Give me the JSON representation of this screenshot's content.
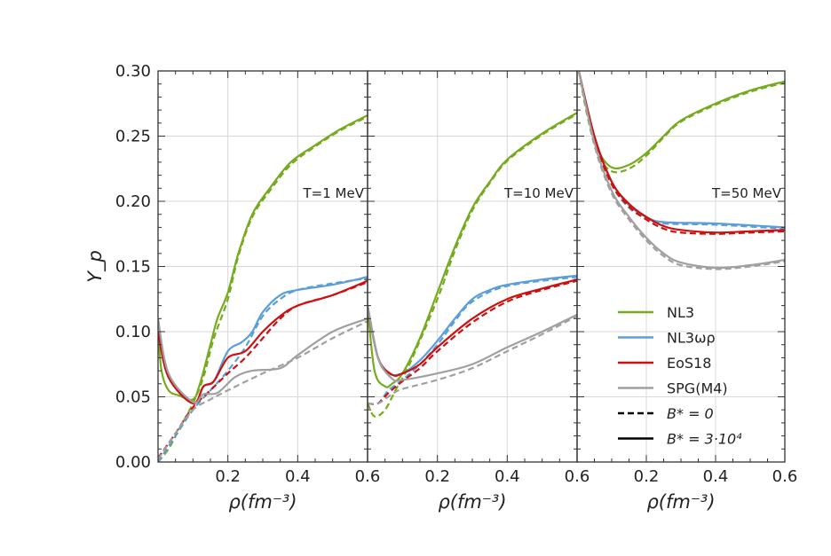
{
  "chart_data": {
    "type": "line",
    "ylabel": "Y_p",
    "ylim": [
      0,
      0.3
    ],
    "yticks": [
      "0.00",
      "0.05",
      "0.10",
      "0.15",
      "0.20",
      "0.25",
      "0.30"
    ],
    "xlim": [
      0,
      0.6
    ],
    "grid": true,
    "legend_placement": "bottom-right of third panel",
    "colors": {
      "NL3": "#77ab1f",
      "NL3wr": "#5b9ed8",
      "EoS18": "#cc1111",
      "SPG": "#a0a0a0"
    },
    "legend": [
      {
        "key": "NL3",
        "label": "NL3",
        "style": "solid"
      },
      {
        "key": "NL3wr",
        "label": "NL3ωρ",
        "style": "solid"
      },
      {
        "key": "EoS18",
        "label": "EoS18",
        "style": "solid"
      },
      {
        "key": "SPG",
        "label": "SPG(M4)",
        "style": "solid"
      },
      {
        "key": "black",
        "label": "B* = 0",
        "style": "dashed"
      },
      {
        "key": "black",
        "label": "B* = 3·10⁴",
        "style": "solid"
      }
    ],
    "panels": [
      {
        "annotation": "T=1 MeV",
        "xlabel": "ρ(fm⁻³)",
        "xticks": [
          "0.2",
          "0.4",
          "0.6"
        ],
        "series": [
          {
            "key": "NL3",
            "style": "solid",
            "x": [
              0,
              0.01,
              0.03,
              0.06,
              0.1,
              0.12,
              0.15,
              0.17,
              0.2,
              0.23,
              0.27,
              0.32,
              0.38,
              0.45,
              0.52,
              0.6
            ],
            "y": [
              0.1,
              0.07,
              0.055,
              0.051,
              0.048,
              0.06,
              0.09,
              0.11,
              0.13,
              0.16,
              0.19,
              0.21,
              0.23,
              0.243,
              0.255,
              0.266
            ]
          },
          {
            "key": "NL3",
            "style": "dashed",
            "x": [
              0,
              0.03,
              0.06,
              0.1,
              0.13,
              0.16,
              0.2,
              0.23,
              0.27,
              0.32,
              0.38,
              0.45,
              0.52,
              0.6
            ],
            "y": [
              0.0,
              0.01,
              0.025,
              0.045,
              0.065,
              0.095,
              0.125,
              0.158,
              0.188,
              0.208,
              0.228,
              0.242,
              0.254,
              0.265
            ]
          },
          {
            "key": "NL3wr",
            "style": "solid",
            "x": [
              0,
              0.03,
              0.1,
              0.13,
              0.16,
              0.2,
              0.24,
              0.27,
              0.3,
              0.35,
              0.4,
              0.5,
              0.6
            ],
            "y": [
              0.1,
              0.065,
              0.045,
              0.058,
              0.062,
              0.085,
              0.092,
              0.1,
              0.115,
              0.128,
              0.132,
              0.136,
              0.142
            ]
          },
          {
            "key": "NL3wr",
            "style": "dashed",
            "x": [
              0,
              0.05,
              0.1,
              0.15,
              0.2,
              0.25,
              0.3,
              0.35,
              0.4,
              0.5,
              0.6
            ],
            "y": [
              0.0,
              0.02,
              0.04,
              0.055,
              0.07,
              0.088,
              0.112,
              0.125,
              0.132,
              0.137,
              0.141
            ]
          },
          {
            "key": "EoS18",
            "style": "solid",
            "x": [
              0,
              0.03,
              0.1,
              0.13,
              0.16,
              0.2,
              0.25,
              0.3,
              0.35,
              0.4,
              0.5,
              0.6
            ],
            "y": [
              0.1,
              0.065,
              0.045,
              0.058,
              0.062,
              0.08,
              0.085,
              0.1,
              0.112,
              0.12,
              0.128,
              0.139
            ]
          },
          {
            "key": "EoS18",
            "style": "dashed",
            "x": [
              0,
              0.05,
              0.1,
              0.15,
              0.2,
              0.25,
              0.3,
              0.35,
              0.4,
              0.5,
              0.6
            ],
            "y": [
              0.003,
              0.022,
              0.042,
              0.055,
              0.068,
              0.08,
              0.095,
              0.11,
              0.12,
              0.128,
              0.138
            ]
          },
          {
            "key": "SPG",
            "style": "solid",
            "x": [
              0,
              0.03,
              0.1,
              0.13,
              0.17,
              0.22,
              0.27,
              0.35,
              0.4,
              0.5,
              0.6
            ],
            "y": [
              0.11,
              0.068,
              0.046,
              0.052,
              0.053,
              0.065,
              0.07,
              0.072,
              0.082,
              0.1,
              0.11
            ]
          },
          {
            "key": "SPG",
            "style": "dashed",
            "x": [
              0,
              0.05,
              0.1,
              0.15,
              0.2,
              0.3,
              0.4,
              0.5,
              0.6
            ],
            "y": [
              0.002,
              0.022,
              0.04,
              0.048,
              0.055,
              0.068,
              0.08,
              0.095,
              0.108
            ]
          }
        ]
      },
      {
        "annotation": "T=10 MeV",
        "xlabel": "ρ(fm⁻³)",
        "xticks": [
          "0.2",
          "0.4",
          "0.6"
        ],
        "series": [
          {
            "key": "NL3",
            "style": "solid",
            "x": [
              0,
              0.02,
              0.05,
              0.07,
              0.1,
              0.15,
              0.2,
              0.25,
              0.3,
              0.35,
              0.4,
              0.5,
              0.6
            ],
            "y": [
              0.12,
              0.07,
              0.058,
              0.06,
              0.068,
              0.095,
              0.13,
              0.165,
              0.195,
              0.215,
              0.232,
              0.252,
              0.268
            ]
          },
          {
            "key": "NL3",
            "style": "dashed",
            "x": [
              0,
              0.02,
              0.05,
              0.08,
              0.12,
              0.2,
              0.25,
              0.3,
              0.35,
              0.4,
              0.5,
              0.6
            ],
            "y": [
              0.045,
              0.035,
              0.04,
              0.055,
              0.075,
              0.125,
              0.162,
              0.193,
              0.214,
              0.231,
              0.251,
              0.267
            ]
          },
          {
            "key": "NL3wr",
            "style": "solid",
            "x": [
              0,
              0.03,
              0.06,
              0.1,
              0.15,
              0.2,
              0.25,
              0.3,
              0.35,
              0.4,
              0.5,
              0.6
            ],
            "y": [
              0.12,
              0.08,
              0.068,
              0.068,
              0.078,
              0.093,
              0.11,
              0.125,
              0.132,
              0.136,
              0.14,
              0.143
            ]
          },
          {
            "key": "NL3wr",
            "style": "dashed",
            "x": [
              0,
              0.03,
              0.06,
              0.1,
              0.15,
              0.2,
              0.25,
              0.3,
              0.4,
              0.6
            ],
            "y": [
              0.045,
              0.045,
              0.055,
              0.063,
              0.075,
              0.09,
              0.108,
              0.123,
              0.135,
              0.142
            ]
          },
          {
            "key": "EoS18",
            "style": "solid",
            "x": [
              0,
              0.03,
              0.07,
              0.1,
              0.15,
              0.2,
              0.3,
              0.4,
              0.5,
              0.6
            ],
            "y": [
              0.12,
              0.08,
              0.067,
              0.068,
              0.075,
              0.088,
              0.11,
              0.125,
              0.133,
              0.14
            ]
          },
          {
            "key": "EoS18",
            "style": "dashed",
            "x": [
              0,
              0.03,
              0.06,
              0.1,
              0.15,
              0.2,
              0.3,
              0.4,
              0.5,
              0.6
            ],
            "y": [
              0.045,
              0.045,
              0.053,
              0.062,
              0.072,
              0.085,
              0.107,
              0.123,
              0.132,
              0.139
            ]
          },
          {
            "key": "SPG",
            "style": "solid",
            "x": [
              0,
              0.03,
              0.07,
              0.1,
              0.2,
              0.3,
              0.4,
              0.5,
              0.6
            ],
            "y": [
              0.12,
              0.08,
              0.064,
              0.063,
              0.068,
              0.075,
              0.088,
              0.1,
              0.113
            ]
          },
          {
            "key": "SPG",
            "style": "dashed",
            "x": [
              0,
              0.03,
              0.07,
              0.1,
              0.2,
              0.3,
              0.4,
              0.5,
              0.6
            ],
            "y": [
              0.045,
              0.045,
              0.052,
              0.056,
              0.063,
              0.072,
              0.085,
              0.098,
              0.112
            ]
          }
        ]
      },
      {
        "annotation": "T=50 MeV",
        "xlabel": "ρ(fm⁻³)",
        "xticks": [
          "0.2",
          "0.4",
          "0.6"
        ],
        "series": [
          {
            "key": "NL3",
            "style": "solid",
            "x": [
              0.005,
              0.03,
              0.06,
              0.1,
              0.15,
              0.2,
              0.25,
              0.3,
              0.4,
              0.5,
              0.6
            ],
            "y": [
              0.3,
              0.27,
              0.24,
              0.226,
              0.228,
              0.237,
              0.25,
              0.262,
              0.275,
              0.285,
              0.292
            ]
          },
          {
            "key": "NL3",
            "style": "dashed",
            "x": [
              0.005,
              0.03,
              0.06,
              0.1,
              0.15,
              0.2,
              0.25,
              0.3,
              0.4,
              0.5,
              0.6
            ],
            "y": [
              0.3,
              0.265,
              0.236,
              0.223,
              0.225,
              0.235,
              0.249,
              0.261,
              0.274,
              0.284,
              0.291
            ]
          },
          {
            "key": "NL3wr",
            "style": "solid",
            "x": [
              0.005,
              0.05,
              0.1,
              0.15,
              0.2,
              0.25,
              0.4,
              0.6
            ],
            "y": [
              0.3,
              0.25,
              0.215,
              0.197,
              0.188,
              0.184,
              0.183,
              0.18
            ]
          },
          {
            "key": "NL3wr",
            "style": "dashed",
            "x": [
              0.005,
              0.05,
              0.1,
              0.15,
              0.2,
              0.25,
              0.4,
              0.6
            ],
            "y": [
              0.3,
              0.248,
              0.213,
              0.195,
              0.187,
              0.183,
              0.182,
              0.179
            ]
          },
          {
            "key": "EoS18",
            "style": "solid",
            "x": [
              0.005,
              0.05,
              0.1,
              0.15,
              0.2,
              0.25,
              0.3,
              0.4,
              0.5,
              0.6
            ],
            "y": [
              0.3,
              0.25,
              0.215,
              0.198,
              0.188,
              0.181,
              0.178,
              0.176,
              0.177,
              0.178
            ]
          },
          {
            "key": "EoS18",
            "style": "dashed",
            "x": [
              0.005,
              0.05,
              0.1,
              0.15,
              0.2,
              0.25,
              0.3,
              0.4,
              0.5,
              0.6
            ],
            "y": [
              0.3,
              0.248,
              0.213,
              0.196,
              0.186,
              0.179,
              0.176,
              0.175,
              0.176,
              0.177
            ]
          },
          {
            "key": "SPG",
            "style": "solid",
            "x": [
              0.005,
              0.05,
              0.1,
              0.15,
              0.2,
              0.25,
              0.3,
              0.4,
              0.5,
              0.6
            ],
            "y": [
              0.3,
              0.245,
              0.208,
              0.188,
              0.172,
              0.16,
              0.153,
              0.149,
              0.151,
              0.155
            ]
          },
          {
            "key": "SPG",
            "style": "dashed",
            "x": [
              0.005,
              0.05,
              0.1,
              0.15,
              0.2,
              0.25,
              0.3,
              0.4,
              0.5,
              0.6
            ],
            "y": [
              0.3,
              0.243,
              0.206,
              0.186,
              0.17,
              0.158,
              0.151,
              0.148,
              0.15,
              0.154
            ]
          }
        ]
      }
    ]
  }
}
